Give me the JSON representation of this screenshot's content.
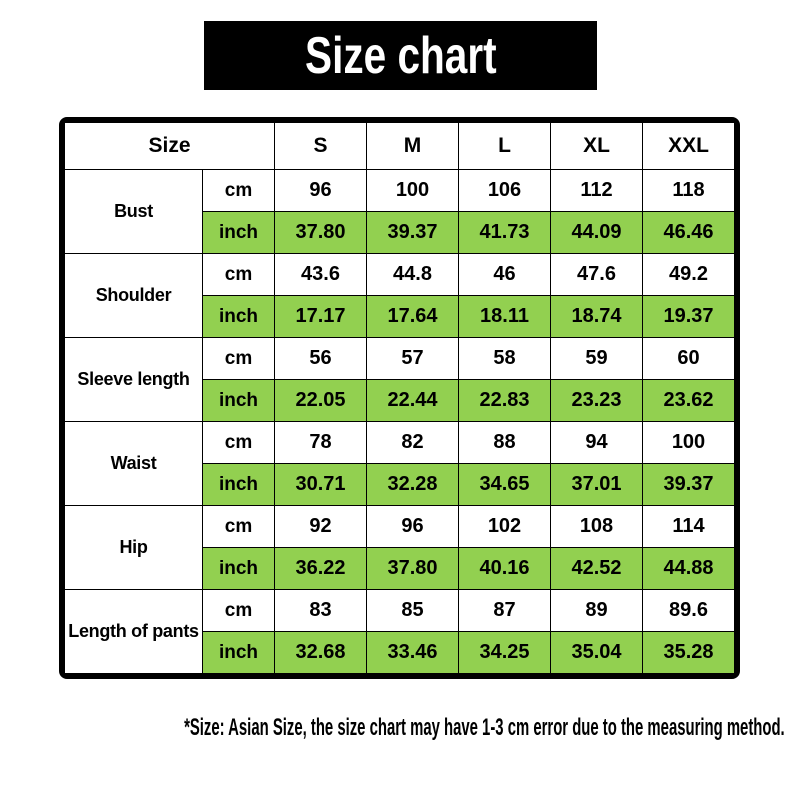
{
  "banner": {
    "title": "Size chart"
  },
  "footnote": "*Size: Asian Size, the size chart may have 1-3 cm error due to the measuring method.",
  "colors": {
    "highlight_green": "#92D050",
    "banner_bg": "#000000",
    "banner_text": "#FFFFFF",
    "border": "#000000",
    "page_bg": "#FFFFFF"
  },
  "chart_data": {
    "type": "table",
    "title": "Size chart",
    "columns": [
      "Size",
      "S",
      "M",
      "L",
      "XL",
      "XXL"
    ],
    "unit_labels": [
      "cm",
      "inch"
    ],
    "rows": [
      {
        "label": "Bust",
        "cm": [
          "96",
          "100",
          "106",
          "112",
          "118"
        ],
        "inch": [
          "37.80",
          "39.37",
          "41.73",
          "44.09",
          "46.46"
        ]
      },
      {
        "label": "Shoulder",
        "cm": [
          "43.6",
          "44.8",
          "46",
          "47.6",
          "49.2"
        ],
        "inch": [
          "17.17",
          "17.64",
          "18.11",
          "18.74",
          "19.37"
        ]
      },
      {
        "label": "Sleeve length",
        "cm": [
          "56",
          "57",
          "58",
          "59",
          "60"
        ],
        "inch": [
          "22.05",
          "22.44",
          "22.83",
          "23.23",
          "23.62"
        ]
      },
      {
        "label": "Waist",
        "cm": [
          "78",
          "82",
          "88",
          "94",
          "100"
        ],
        "inch": [
          "30.71",
          "32.28",
          "34.65",
          "37.01",
          "39.37"
        ]
      },
      {
        "label": "Hip",
        "cm": [
          "92",
          "96",
          "102",
          "108",
          "114"
        ],
        "inch": [
          "36.22",
          "37.80",
          "40.16",
          "42.52",
          "44.88"
        ]
      },
      {
        "label": "Length of pants",
        "cm": [
          "83",
          "85",
          "87",
          "89",
          "89.6"
        ],
        "inch": [
          "32.68",
          "33.46",
          "34.25",
          "35.04",
          "35.28"
        ]
      }
    ],
    "note": "*Size: Asian Size, the size chart may have 1-3 cm error due to the measuring method.",
    "layout": {
      "highlighted_unit": "inch",
      "highlight_color": "#92D050",
      "header_merged_cell_span": 2,
      "grid": "on"
    }
  }
}
